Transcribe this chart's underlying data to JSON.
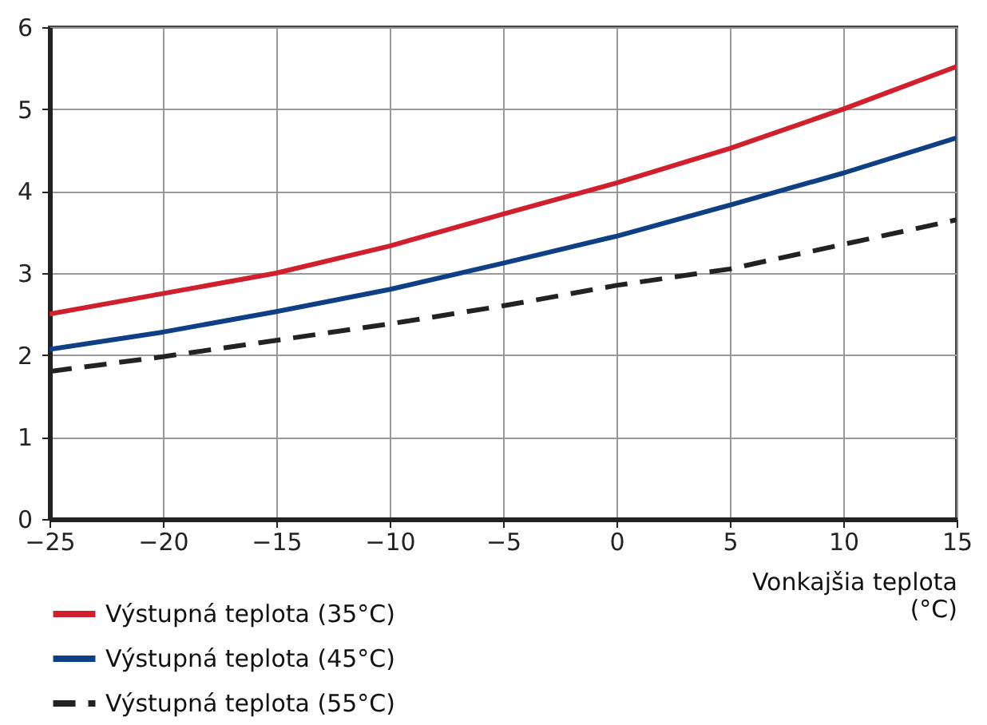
{
  "chart_data": {
    "type": "line",
    "xlabel": "Vonkajšia teplota (°C)",
    "x": [
      -25,
      -20,
      -15,
      -10,
      -5,
      0,
      5,
      10,
      15
    ],
    "series": [
      {
        "name": "Výstupná teplota (35°C)",
        "color": "#d0202e",
        "values": [
          2.5,
          2.75,
          3.0,
          3.33,
          3.72,
          4.1,
          4.52,
          5.0,
          5.52
        ]
      },
      {
        "name": "Výstupná teplota (45°C)",
        "color": "#0f3f85",
        "values": [
          2.07,
          2.28,
          2.53,
          2.8,
          3.12,
          3.45,
          3.83,
          4.22,
          4.65
        ]
      },
      {
        "name": "Výstupná teplota (55°C)",
        "color": "#222222",
        "line_style": "dashed",
        "values": [
          1.8,
          1.98,
          2.18,
          2.38,
          2.6,
          2.85,
          3.05,
          3.35,
          3.65
        ]
      }
    ],
    "xlim": [
      -25,
      15
    ],
    "xticks": [
      -25,
      -20,
      -15,
      -10,
      -5,
      0,
      5,
      10,
      15
    ],
    "ylim": [
      0,
      6
    ],
    "yticks": [
      0,
      1,
      2,
      3,
      4,
      5,
      6
    ],
    "grid": true,
    "legend": "bottom left",
    "marker": "none"
  }
}
